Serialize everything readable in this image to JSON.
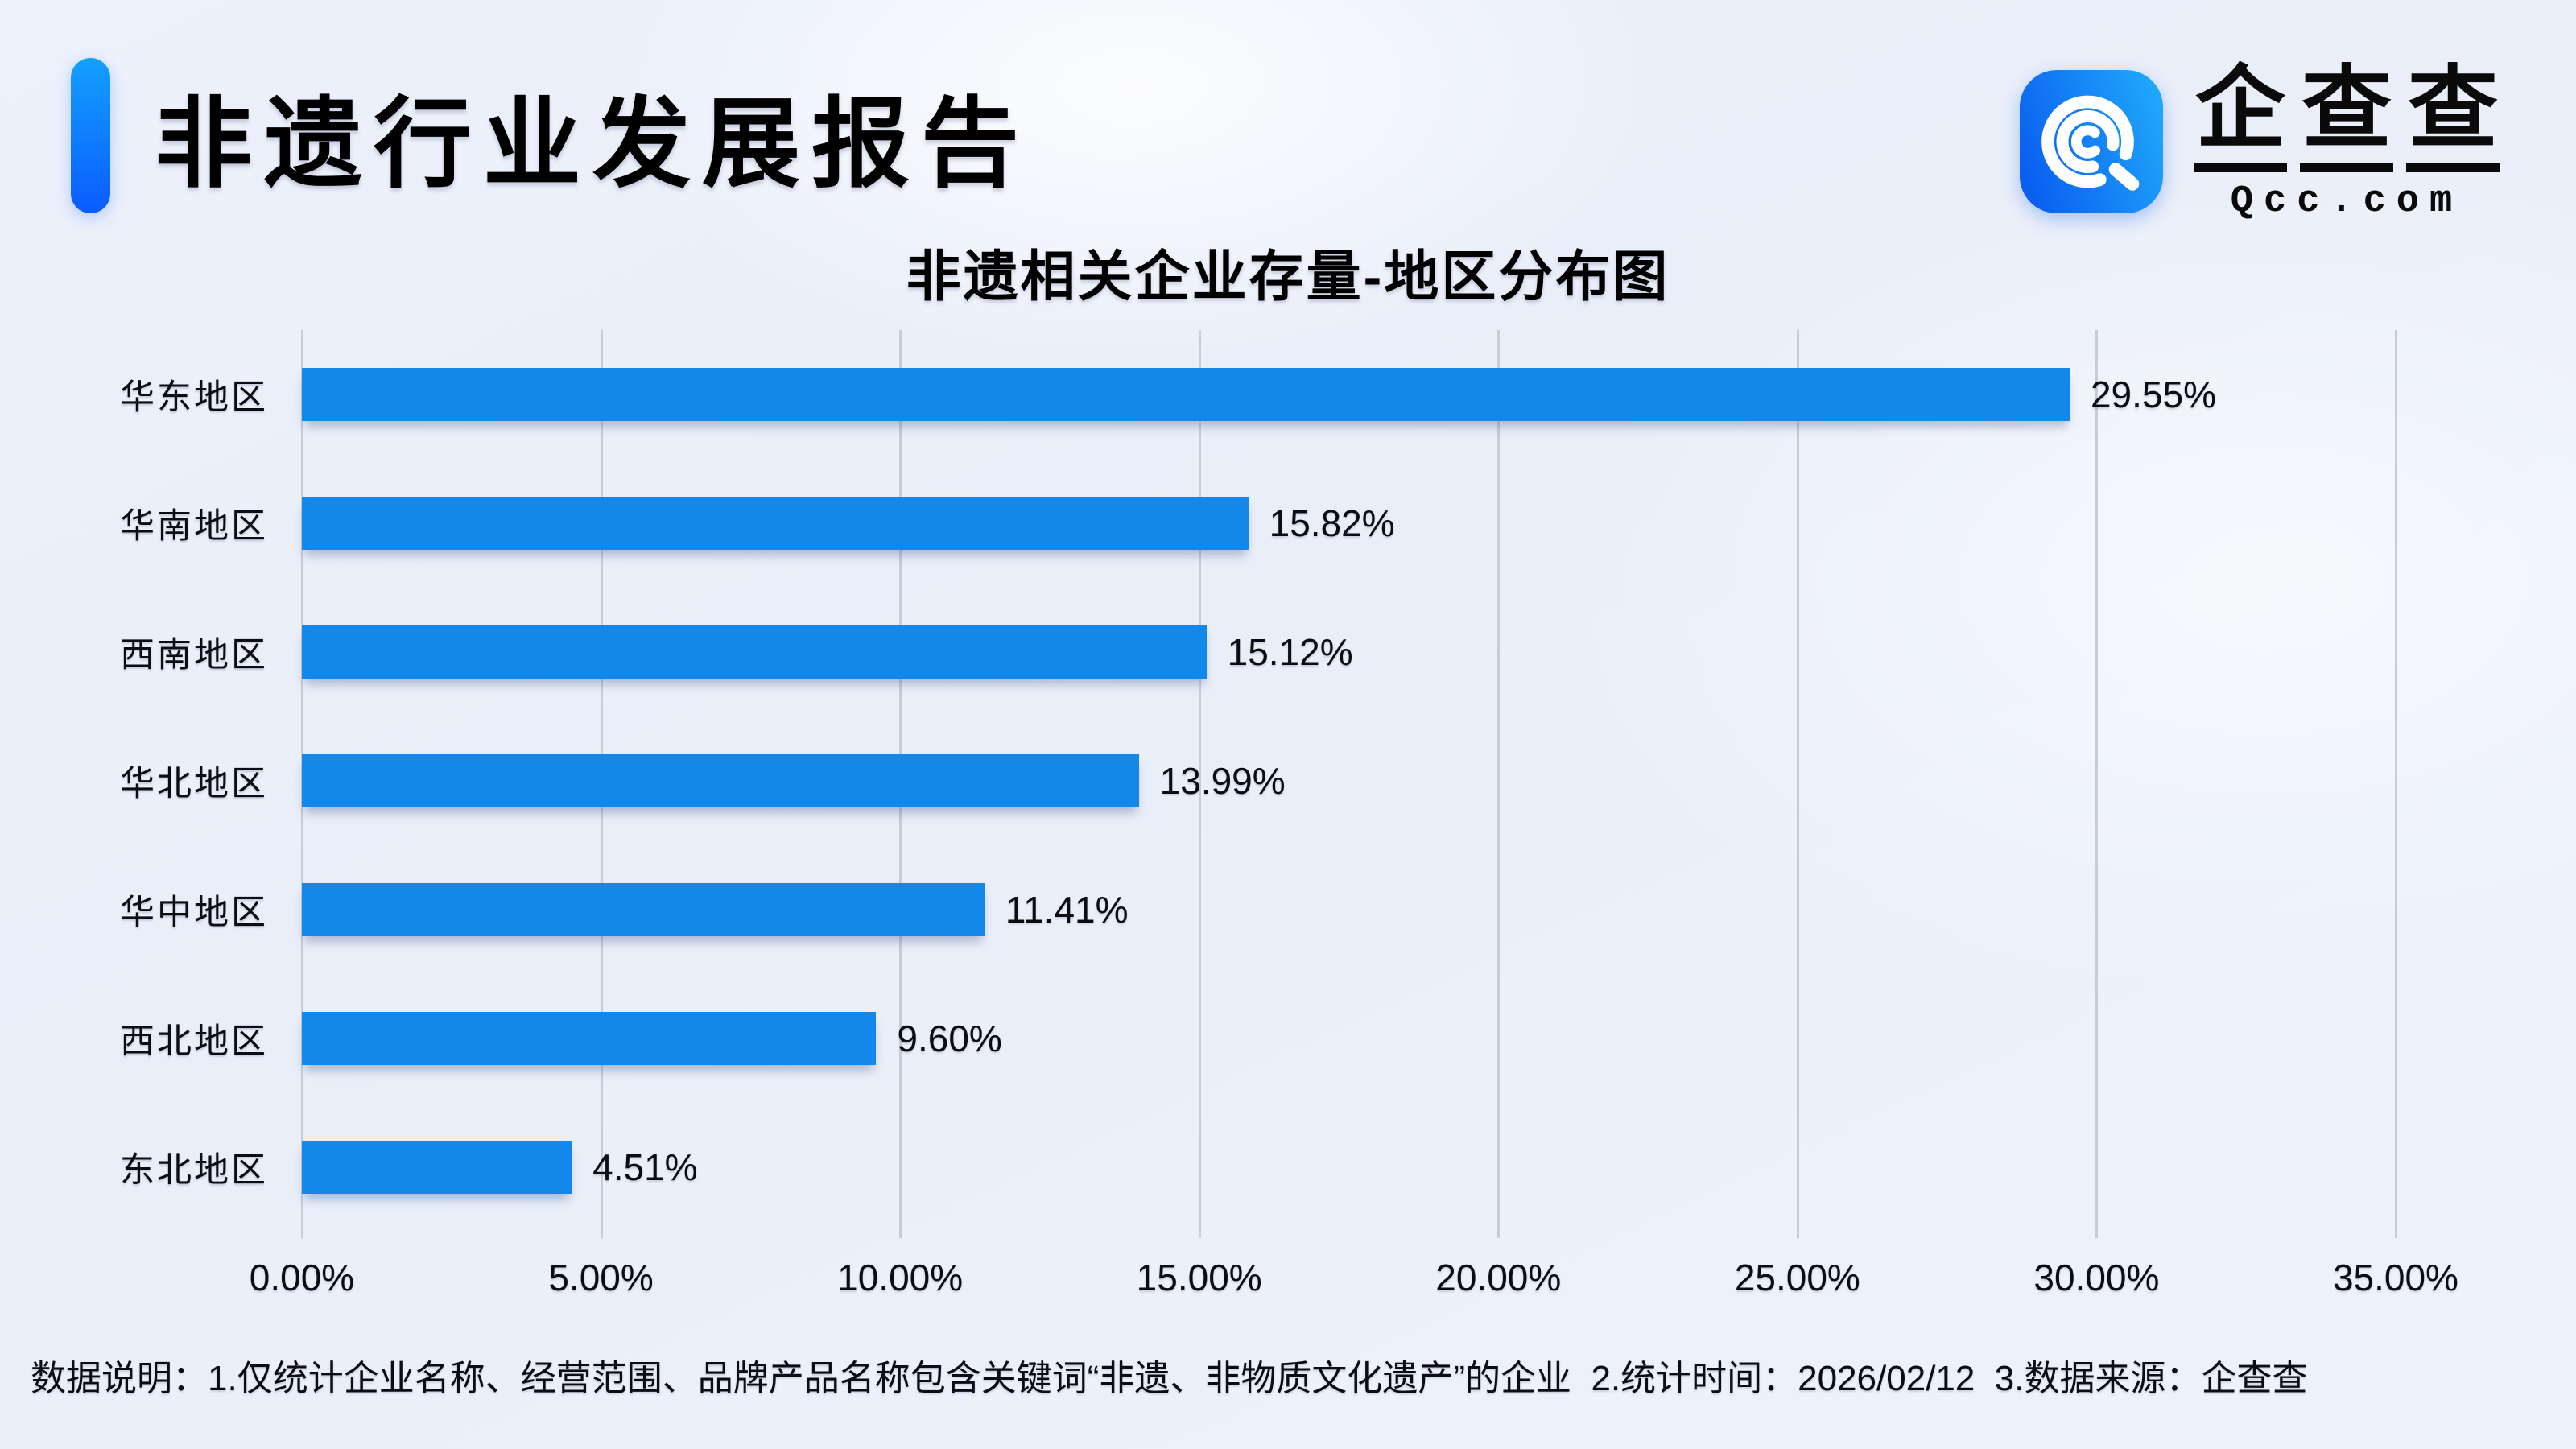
{
  "report": {
    "title": "非遗行业发展报告",
    "logo": {
      "brand": "企查查",
      "domain": "Qcc.com",
      "icon": "qcc-magnifier-icon"
    },
    "footer": "数据说明：1.仅统计企业名称、经营范围、品牌产品名称包含关键词“非遗、非物质文化遗产”的企业  2.统计时间：2026/02/12  3.数据来源：企查查"
  },
  "chart_data": {
    "type": "bar",
    "orientation": "horizontal",
    "title": "非遗相关企业存量-地区分布图",
    "categories": [
      "华东地区",
      "华南地区",
      "西南地区",
      "华北地区",
      "华中地区",
      "西北地区",
      "东北地区"
    ],
    "values": [
      29.55,
      15.82,
      15.12,
      13.99,
      11.41,
      9.6,
      4.51
    ],
    "value_labels": [
      "29.55%",
      "15.82%",
      "15.12%",
      "13.99%",
      "11.41%",
      "9.60%",
      "4.51%"
    ],
    "x_tick_values": [
      0,
      5,
      10,
      15,
      20,
      25,
      30,
      35
    ],
    "x_ticks": [
      "0.00%",
      "5.00%",
      "10.00%",
      "15.00%",
      "20.00%",
      "25.00%",
      "30.00%",
      "35.00%"
    ],
    "xlim": [
      0,
      36.4
    ],
    "grid": "vertical",
    "legend": "none",
    "bar_color": "#1487eb"
  },
  "colors": {
    "bar": "#1487eb",
    "grid": "#c7ccd6",
    "accent_top": "#14a0ff",
    "accent_bottom": "#0a5cff",
    "logo_left": "#0a5ef0",
    "logo_right": "#1fa6fa",
    "background": "#ecf1fb",
    "text": "#0c0e13"
  }
}
